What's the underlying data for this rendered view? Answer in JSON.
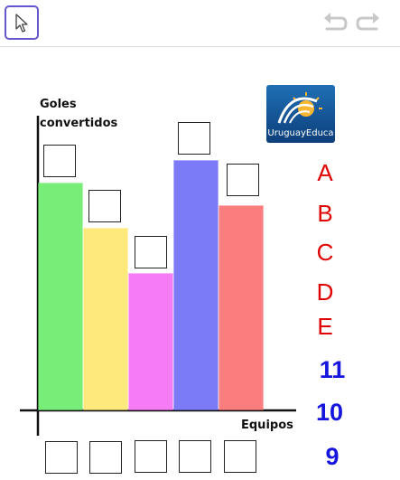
{
  "toolbar": {
    "move_tool": "arrow-cursor-icon",
    "undo": "undo-icon",
    "redo": "redo-icon",
    "accent": "#6557d2"
  },
  "logo": {
    "text": "UruguayEduca",
    "icon": "uruguayeduca-logo"
  },
  "chart_data": {
    "type": "bar",
    "ylabel_lines": [
      "Goles",
      "convertidos"
    ],
    "xlabel": "Equipos",
    "series": [
      {
        "values": [
          10,
          8,
          6,
          11,
          9
        ],
        "colors": [
          "#78ee78",
          "#fde97c",
          "#f67cf6",
          "#7b7bf8",
          "#fb7d7d"
        ]
      }
    ],
    "ylim": [
      0,
      11
    ],
    "grid": false
  },
  "letters": [
    "A",
    "B",
    "C",
    "D",
    "E"
  ],
  "numbers": [
    "11",
    "10",
    "9"
  ]
}
